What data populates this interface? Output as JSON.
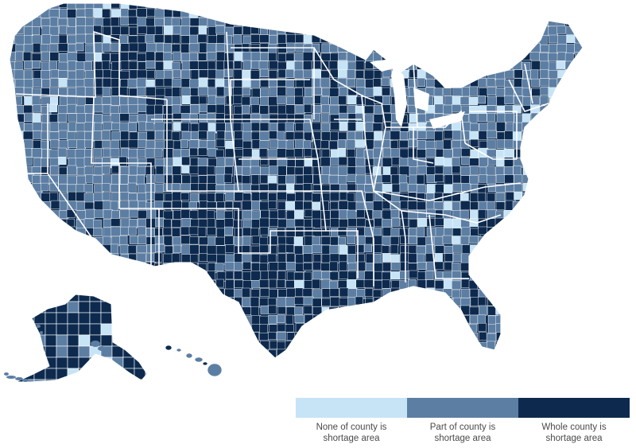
{
  "colors": {
    "none": "#c6e4f6",
    "part": "#5c7ea3",
    "whole": "#0d2a4e",
    "border": "#ffffff"
  },
  "legend": {
    "items": [
      {
        "key": "none",
        "line1": "None of county is",
        "line2": "shortage area",
        "color": "#c6e4f6"
      },
      {
        "key": "part",
        "line1": "Part of county is",
        "line2": "shortage area",
        "color": "#5c7ea3"
      },
      {
        "key": "whole",
        "line1": "Whole county is",
        "line2": "shortage area",
        "color": "#0d2a4e"
      }
    ]
  }
}
